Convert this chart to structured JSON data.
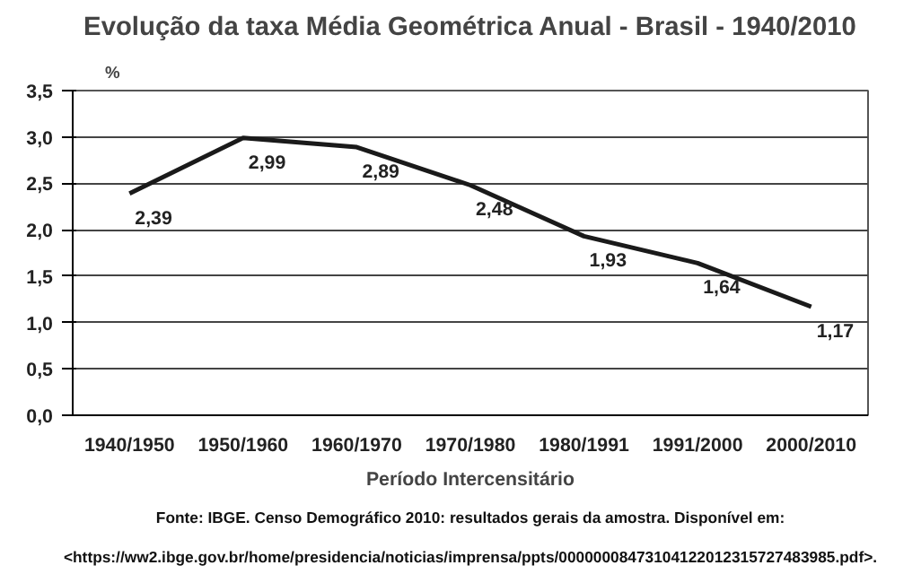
{
  "chart_data": {
    "type": "line",
    "title": "Evolução da taxa Média Geométrica Anual - Brasil - 1940/2010",
    "ylabel": "%",
    "xlabel": "Período Intercensitário",
    "categories": [
      "1940/1950",
      "1950/1960",
      "1960/1970",
      "1970/1980",
      "1980/1991",
      "1991/2000",
      "2000/2010"
    ],
    "series": [
      {
        "color": "#1a1a1a",
        "values": [
          2.39,
          2.99,
          2.89,
          2.48,
          1.93,
          1.64,
          1.17
        ],
        "value_labels": [
          "2,39",
          "2,99",
          "2,89",
          "2,48",
          "1,93",
          "1,64",
          "1,17"
        ]
      }
    ],
    "ylim": [
      0,
      3.5
    ],
    "yticks": [
      {
        "value": 0,
        "label": "0,0"
      },
      {
        "value": 0.5,
        "label": "0,5"
      },
      {
        "value": 1,
        "label": "1,0"
      },
      {
        "value": 1.5,
        "label": "1,5"
      },
      {
        "value": 2,
        "label": "2,0"
      },
      {
        "value": 2.5,
        "label": "2,5"
      },
      {
        "value": 3,
        "label": "3,0"
      },
      {
        "value": 3.5,
        "label": "3,5"
      }
    ],
    "grid": "y",
    "marker": "none",
    "line_style": "solid",
    "annotations": [
      "Fonte: IBGE. Censo Demográfico 2010: resultados gerais da amostra. Disponível em:",
      "<https://ww2.ibge.gov.br/home/presidencia/noticias/imprensa/ppts/00000008473104122012315727483985.pdf>."
    ]
  }
}
